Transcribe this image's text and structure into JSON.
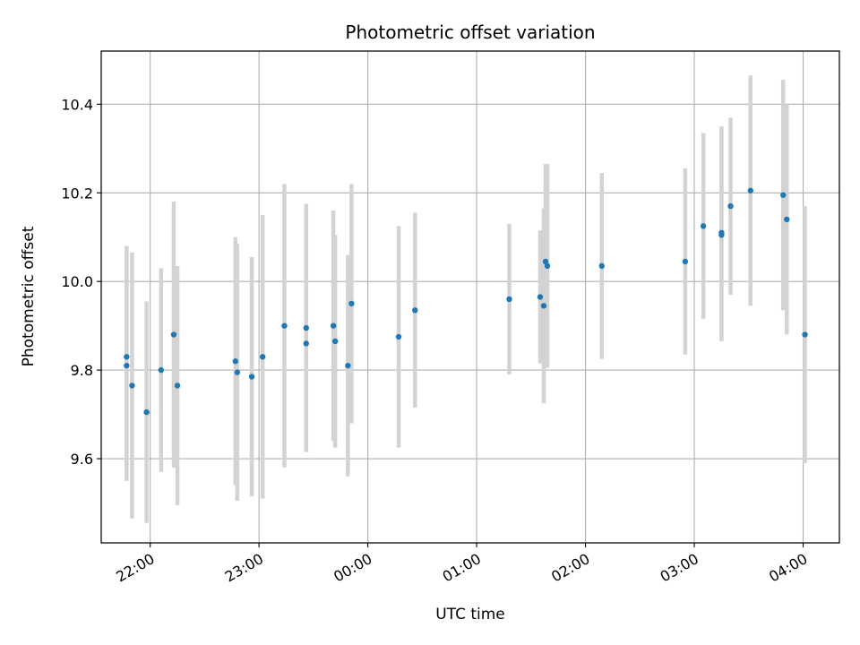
{
  "chart_data": {
    "type": "scatter",
    "title": "Photometric offset variation",
    "xlabel": "UTC time",
    "ylabel": "Photometric offset",
    "xlim": [
      "21:33",
      "04:20"
    ],
    "ylim": [
      9.41,
      10.52
    ],
    "grid": true,
    "x_ticks": [
      "22:00",
      "23:00",
      "00:00",
      "01:00",
      "02:00",
      "03:00",
      "04:00"
    ],
    "y_ticks": [
      9.6,
      9.8,
      10.0,
      10.2,
      10.4
    ],
    "point_color": "#1f77b4",
    "errorbar_color": "#d3d3d3",
    "series": [
      {
        "points": [
          {
            "x": "21:47",
            "y": 9.83,
            "err": 0.25
          },
          {
            "x": "21:47",
            "y": 9.81,
            "err": 0.26
          },
          {
            "x": "21:50",
            "y": 9.765,
            "err": 0.3
          },
          {
            "x": "21:58",
            "y": 9.705,
            "err": 0.25
          },
          {
            "x": "22:06",
            "y": 9.8,
            "err": 0.23
          },
          {
            "x": "22:13",
            "y": 9.88,
            "err": 0.3
          },
          {
            "x": "22:15",
            "y": 9.765,
            "err": 0.27
          },
          {
            "x": "22:47",
            "y": 9.82,
            "err": 0.28
          },
          {
            "x": "22:48",
            "y": 9.795,
            "err": 0.29
          },
          {
            "x": "22:56",
            "y": 9.785,
            "err": 0.27
          },
          {
            "x": "23:02",
            "y": 9.83,
            "err": 0.32
          },
          {
            "x": "23:14",
            "y": 9.9,
            "err": 0.32
          },
          {
            "x": "23:26",
            "y": 9.895,
            "err": 0.28
          },
          {
            "x": "23:26",
            "y": 9.86,
            "err": 0.24
          },
          {
            "x": "23:41",
            "y": 9.9,
            "err": 0.26
          },
          {
            "x": "23:42",
            "y": 9.865,
            "err": 0.24
          },
          {
            "x": "23:49",
            "y": 9.81,
            "err": 0.25
          },
          {
            "x": "23:51",
            "y": 9.95,
            "err": 0.27
          },
          {
            "x": "00:17",
            "y": 9.875,
            "err": 0.25
          },
          {
            "x": "00:26",
            "y": 9.935,
            "err": 0.22
          },
          {
            "x": "01:18",
            "y": 9.96,
            "err": 0.17
          },
          {
            "x": "01:35",
            "y": 9.965,
            "err": 0.15
          },
          {
            "x": "01:37",
            "y": 9.945,
            "err": 0.22
          },
          {
            "x": "01:38",
            "y": 10.045,
            "err": 0.22
          },
          {
            "x": "01:39",
            "y": 10.035,
            "err": 0.23
          },
          {
            "x": "02:09",
            "y": 10.035,
            "err": 0.21
          },
          {
            "x": "02:55",
            "y": 10.045,
            "err": 0.21
          },
          {
            "x": "03:05",
            "y": 10.125,
            "err": 0.21
          },
          {
            "x": "03:15",
            "y": 10.105,
            "err": 0.24
          },
          {
            "x": "03:15",
            "y": 10.11,
            "err": 0.24
          },
          {
            "x": "03:20",
            "y": 10.17,
            "err": 0.2
          },
          {
            "x": "03:31",
            "y": 10.205,
            "err": 0.26
          },
          {
            "x": "03:49",
            "y": 10.195,
            "err": 0.26
          },
          {
            "x": "03:51",
            "y": 10.14,
            "err": 0.26
          },
          {
            "x": "04:01",
            "y": 9.88,
            "err": 0.29
          }
        ]
      }
    ]
  }
}
